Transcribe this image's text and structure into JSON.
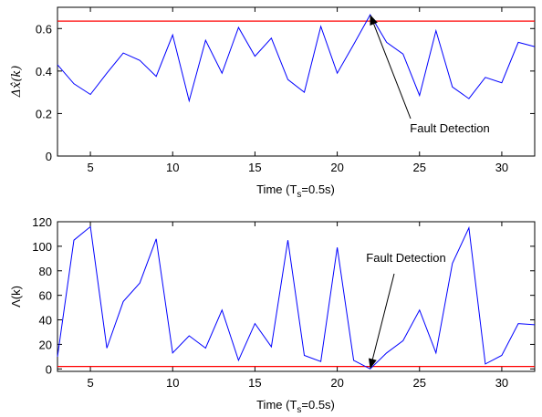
{
  "chart_data": [
    {
      "type": "line",
      "ylabel": "Δx̂(k)",
      "xlabel_main": "Time (T",
      "xlabel_sub": "s",
      "xlabel_tail": "=0.5s)",
      "xlim": [
        3,
        32
      ],
      "ylim": [
        0,
        0.7
      ],
      "xticks": [
        5,
        10,
        15,
        20,
        25,
        30
      ],
      "yticks": [
        0,
        0.2,
        0.4,
        0.6
      ],
      "ytick_labels": [
        "0",
        "0.2",
        "0.4",
        "0.6"
      ],
      "threshold": 0.635,
      "threshold_color": "#ff0000",
      "line_color": "#0000ff",
      "x": [
        3,
        4,
        5,
        6,
        7,
        8,
        9,
        10,
        11,
        12,
        13,
        14,
        15,
        16,
        17,
        18,
        19,
        20,
        21,
        22,
        23,
        24,
        25,
        26,
        27,
        28,
        29,
        30,
        31,
        32
      ],
      "values": [
        0.43,
        0.34,
        0.29,
        0.39,
        0.485,
        0.45,
        0.375,
        0.57,
        0.26,
        0.545,
        0.39,
        0.605,
        0.47,
        0.555,
        0.36,
        0.3,
        0.61,
        0.39,
        0.525,
        0.665,
        0.535,
        0.48,
        0.285,
        0.59,
        0.325,
        0.27,
        0.37,
        0.345,
        0.535,
        0.515
      ],
      "annotation": {
        "text": "Fault Detection",
        "x_point": 22,
        "y_point": 0.665
      }
    },
    {
      "type": "line",
      "ylabel": "Λ(k)",
      "xlabel_main": "Time (T",
      "xlabel_sub": "s",
      "xlabel_tail": "=0.5s)",
      "xlim": [
        3,
        32
      ],
      "ylim": [
        -2,
        120
      ],
      "xticks": [
        5,
        10,
        15,
        20,
        25,
        30
      ],
      "yticks": [
        0,
        20,
        40,
        60,
        80,
        100,
        120
      ],
      "ytick_labels": [
        "0",
        "20",
        "40",
        "60",
        "80",
        "100",
        "120"
      ],
      "threshold": 2,
      "threshold_color": "#ff0000",
      "line_color": "#0000ff",
      "x": [
        3,
        4,
        5,
        6,
        7,
        8,
        9,
        10,
        11,
        12,
        13,
        14,
        15,
        16,
        17,
        18,
        19,
        20,
        21,
        22,
        23,
        24,
        25,
        26,
        27,
        28,
        29,
        30,
        31,
        32
      ],
      "values": [
        10,
        105,
        116,
        17,
        55,
        70,
        106,
        13,
        27,
        17,
        48,
        7,
        37,
        18,
        105,
        11,
        6,
        99,
        7,
        0,
        13,
        23,
        48,
        13,
        86,
        115,
        4,
        11,
        37,
        36
      ],
      "annotation": {
        "text": "Fault Detection",
        "x_point": 22,
        "y_point": 0
      }
    }
  ]
}
